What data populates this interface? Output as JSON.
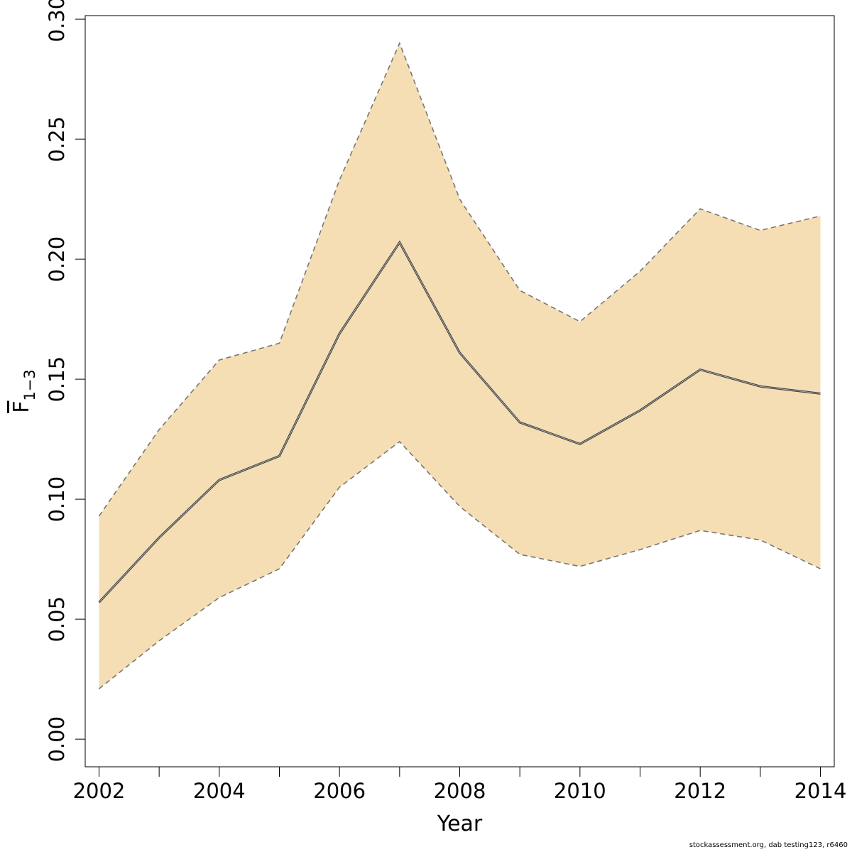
{
  "chart_data": {
    "type": "area",
    "xlabel": "Year",
    "ylabel": {
      "main": "F",
      "subscript": "1−3"
    },
    "x": [
      2002,
      2003,
      2004,
      2005,
      2006,
      2007,
      2008,
      2009,
      2010,
      2011,
      2012,
      2013,
      2014
    ],
    "series": [
      {
        "role": "estimate",
        "values": [
          0.057,
          0.084,
          0.108,
          0.118,
          0.169,
          0.207,
          0.161,
          0.132,
          0.123,
          0.137,
          0.154,
          0.147,
          0.144
        ]
      },
      {
        "role": "upper",
        "values": [
          0.093,
          0.129,
          0.158,
          0.165,
          0.233,
          0.29,
          0.225,
          0.187,
          0.174,
          0.195,
          0.221,
          0.212,
          0.218
        ]
      },
      {
        "role": "lower",
        "values": [
          0.021,
          0.041,
          0.059,
          0.071,
          0.105,
          0.124,
          0.097,
          0.077,
          0.072,
          0.079,
          0.087,
          0.083,
          0.071
        ]
      }
    ],
    "xlim": [
      2001.77,
      2014.23
    ],
    "ylim": [
      -0.0115,
      0.3015
    ],
    "xticks": [
      "2002",
      "2004",
      "2006",
      "2008",
      "2010",
      "2012",
      "2014"
    ],
    "yticks": [
      "0.00",
      "0.05",
      "0.10",
      "0.15",
      "0.20",
      "0.25",
      "0.30"
    ],
    "band_color": "#F5DEB3",
    "line_color": "#444444",
    "dash_color": "#777777",
    "grid": false
  },
  "footer": "stockassessment.org, dab testing123, r6460"
}
